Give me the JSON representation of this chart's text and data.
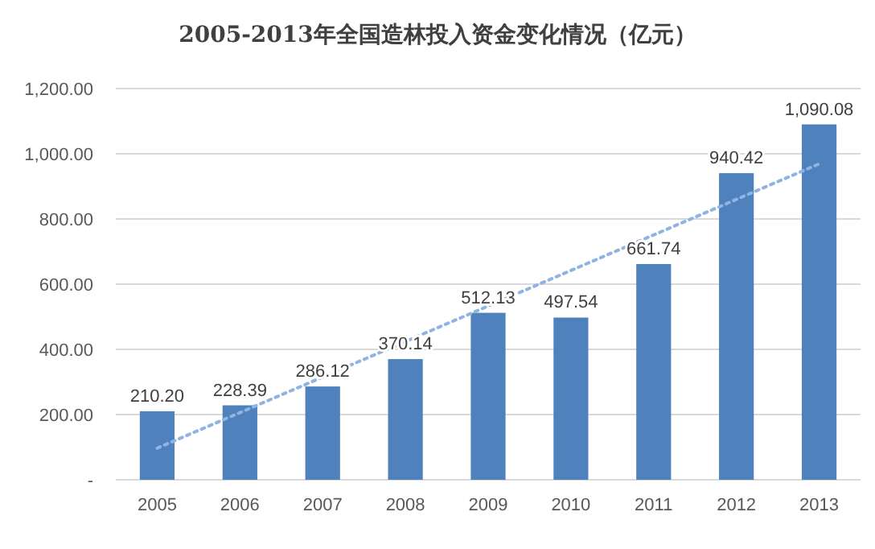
{
  "chart_data": {
    "type": "bar",
    "title": "2005-2013年全国造林投入资金变化情况（亿元）",
    "categories": [
      "2005",
      "2006",
      "2007",
      "2008",
      "2009",
      "2010",
      "2011",
      "2012",
      "2013"
    ],
    "series": [
      {
        "color": "#4f81bd",
        "values": [
          210.2,
          228.39,
          286.12,
          370.14,
          512.13,
          497.54,
          661.74,
          940.42,
          1090.08
        ],
        "value_labels": [
          "210.20",
          "228.39",
          "286.12",
          "370.14",
          "512.13",
          "497.54",
          "661.74",
          "940.42",
          "1,090.08"
        ]
      },
      {
        "type": "line",
        "color": "#8fb4e3",
        "line_style": "dotted",
        "values": [
          97,
          206,
          315,
          424,
          533,
          642,
          751,
          860,
          969
        ]
      }
    ],
    "ylim": [
      0,
      1200
    ],
    "yticks": [
      {
        "value": 0,
        "label": "-"
      },
      {
        "value": 200,
        "label": "200.00"
      },
      {
        "value": 400,
        "label": "400.00"
      },
      {
        "value": 600,
        "label": "600.00"
      },
      {
        "value": 800,
        "label": "800.00"
      },
      {
        "value": 1000,
        "label": "1,000.00"
      },
      {
        "value": 1200,
        "label": "1,200.00"
      }
    ],
    "grid": "y"
  }
}
